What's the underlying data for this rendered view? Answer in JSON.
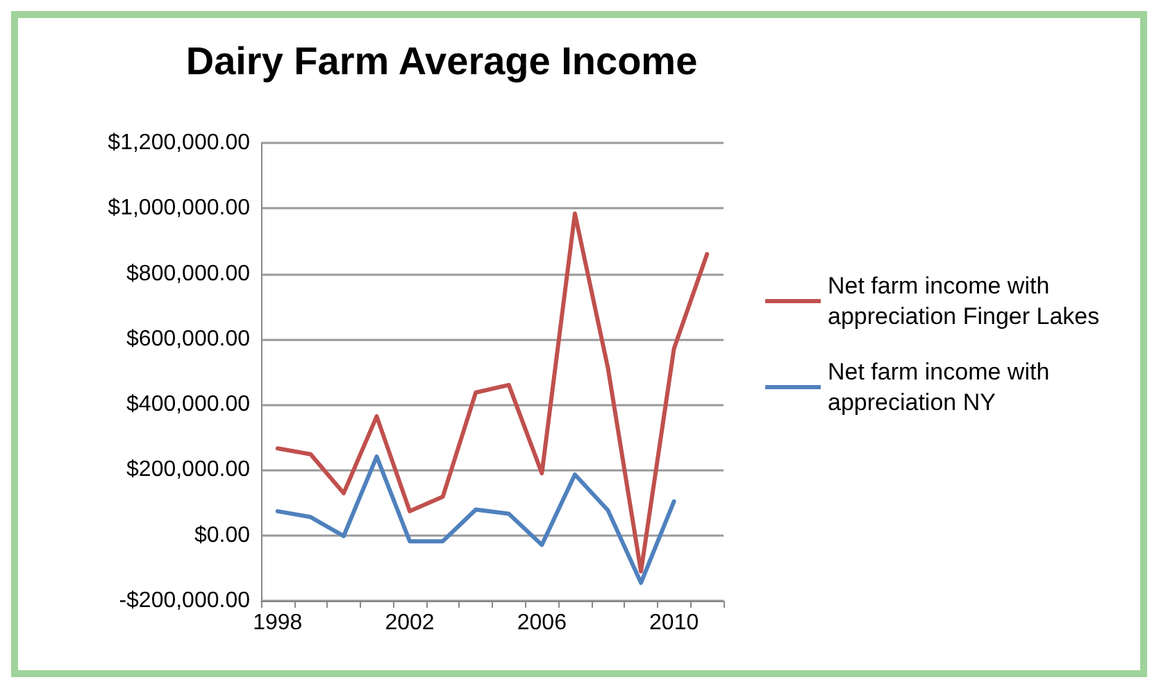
{
  "chart_data": {
    "type": "line",
    "title": "Dairy Farm Average Income",
    "categories": [
      "1998",
      null,
      null,
      null,
      "2002",
      null,
      null,
      null,
      "2006",
      null,
      null,
      null,
      "2010",
      null
    ],
    "series": [
      {
        "name": "Net farm income with appreciation Finger Lakes",
        "color": "#c0504d",
        "values": [
          266000,
          248000,
          129000,
          364000,
          74000,
          118000,
          437000,
          460000,
          190000,
          984000,
          512000,
          -110000,
          571000,
          860000
        ]
      },
      {
        "name": "Net farm income with appreciation NY",
        "color": "#4f81bd",
        "values": [
          74000,
          56000,
          -2000,
          241000,
          -18000,
          -18000,
          79000,
          66000,
          -29000,
          186000,
          77000,
          -145000,
          104000,
          null
        ]
      }
    ],
    "ylim": [
      -200000,
      1200000
    ],
    "yticks": [
      {
        "value": -200000,
        "label": "-$200,000.00"
      },
      {
        "value": 0,
        "label": "$0.00"
      },
      {
        "value": 200000,
        "label": "$200,000.00"
      },
      {
        "value": 400000,
        "label": "$400,000.00"
      },
      {
        "value": 600000,
        "label": "$600,000.00"
      },
      {
        "value": 800000,
        "label": "$800,000.00"
      },
      {
        "value": 1000000,
        "label": "$1,000,000.00"
      },
      {
        "value": 1200000,
        "label": "$1,200,000.00"
      }
    ],
    "grid": "y",
    "legend": "right",
    "marker": "none",
    "line_style": "solid"
  }
}
